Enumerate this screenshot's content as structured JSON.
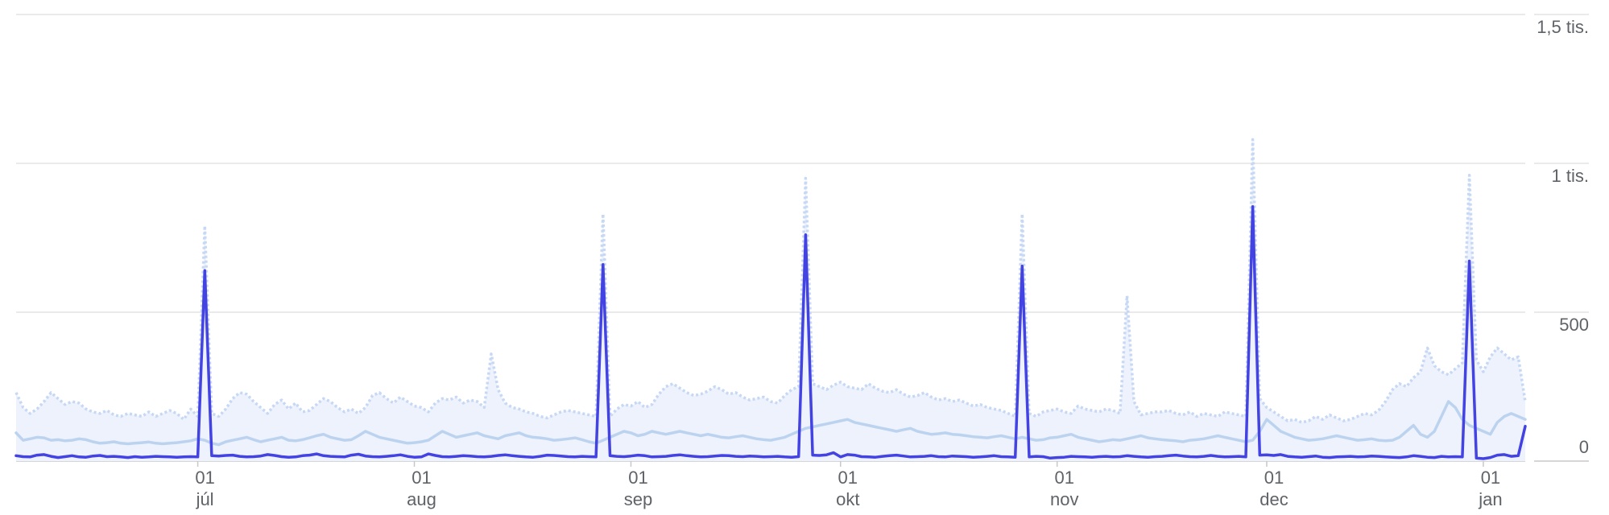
{
  "chart_data": {
    "type": "line",
    "categories": [
      null,
      null,
      null,
      null,
      null,
      null,
      null,
      null,
      null,
      null,
      null,
      null,
      null,
      null,
      null,
      null,
      null,
      null,
      null,
      null,
      null,
      null,
      null,
      null,
      null,
      null,
      [
        "01",
        "júl"
      ],
      null,
      null,
      null,
      null,
      null,
      null,
      null,
      null,
      null,
      null,
      null,
      null,
      null,
      null,
      null,
      null,
      null,
      null,
      null,
      null,
      null,
      null,
      null,
      null,
      null,
      null,
      null,
      null,
      null,
      null,
      [
        "01",
        "aug"
      ],
      null,
      null,
      null,
      null,
      null,
      null,
      null,
      null,
      null,
      null,
      null,
      null,
      null,
      null,
      null,
      null,
      null,
      null,
      null,
      null,
      null,
      null,
      null,
      null,
      null,
      null,
      null,
      null,
      null,
      null,
      [
        "01",
        "sep"
      ],
      null,
      null,
      null,
      null,
      null,
      null,
      null,
      null,
      null,
      null,
      null,
      null,
      null,
      null,
      null,
      null,
      null,
      null,
      null,
      null,
      null,
      null,
      null,
      null,
      null,
      null,
      null,
      null,
      null,
      [
        "01",
        "okt"
      ],
      null,
      null,
      null,
      null,
      null,
      null,
      null,
      null,
      null,
      null,
      null,
      null,
      null,
      null,
      null,
      null,
      null,
      null,
      null,
      null,
      null,
      null,
      null,
      null,
      null,
      null,
      null,
      null,
      null,
      null,
      [
        "01",
        "nov"
      ],
      null,
      null,
      null,
      null,
      null,
      null,
      null,
      null,
      null,
      null,
      null,
      null,
      null,
      null,
      null,
      null,
      null,
      null,
      null,
      null,
      null,
      null,
      null,
      null,
      null,
      null,
      null,
      null,
      null,
      [
        "01",
        "dec"
      ],
      null,
      null,
      null,
      null,
      null,
      null,
      null,
      null,
      null,
      null,
      null,
      null,
      null,
      null,
      null,
      null,
      null,
      null,
      null,
      null,
      null,
      null,
      null,
      null,
      null,
      null,
      null,
      null,
      null,
      null,
      [
        "01",
        "jan"
      ],
      null,
      null,
      null,
      null,
      null,
      null
    ],
    "series": [
      {
        "color": "#c6d8f4",
        "line_style": "dotted",
        "fill": "#eef2fc",
        "values": [
          230,
          180,
          160,
          175,
          200,
          230,
          210,
          190,
          200,
          195,
          175,
          165,
          160,
          170,
          155,
          150,
          160,
          155,
          150,
          165,
          150,
          160,
          170,
          160,
          140,
          175,
          150,
          790,
          160,
          150,
          175,
          210,
          230,
          225,
          200,
          180,
          160,
          190,
          205,
          175,
          195,
          165,
          170,
          190,
          210,
          200,
          180,
          165,
          175,
          160,
          180,
          220,
          230,
          210,
          195,
          215,
          200,
          185,
          180,
          165,
          195,
          210,
          205,
          215,
          195,
          205,
          200,
          180,
          360,
          240,
          195,
          180,
          175,
          165,
          160,
          150,
          145,
          155,
          165,
          170,
          165,
          160,
          155,
          150,
          830,
          150,
          175,
          190,
          185,
          200,
          180,
          190,
          225,
          250,
          260,
          245,
          230,
          220,
          225,
          235,
          250,
          240,
          225,
          230,
          215,
          205,
          210,
          215,
          200,
          195,
          220,
          240,
          250,
          950,
          260,
          250,
          240,
          255,
          265,
          250,
          245,
          240,
          260,
          245,
          235,
          230,
          240,
          225,
          215,
          220,
          230,
          215,
          205,
          210,
          200,
          205,
          195,
          185,
          190,
          180,
          175,
          170,
          160,
          150,
          830,
          160,
          150,
          165,
          170,
          175,
          165,
          160,
          185,
          175,
          170,
          165,
          175,
          170,
          160,
          555,
          200,
          155,
          160,
          165,
          165,
          170,
          160,
          155,
          165,
          150,
          160,
          155,
          150,
          165,
          160,
          155,
          150,
          1080,
          210,
          180,
          165,
          150,
          135,
          140,
          130,
          135,
          150,
          140,
          155,
          145,
          135,
          140,
          150,
          160,
          155,
          170,
          200,
          240,
          260,
          250,
          280,
          300,
          380,
          320,
          300,
          290,
          310,
          330,
          960,
          340,
          300,
          350,
          380,
          360,
          340,
          350,
          200
        ]
      },
      {
        "color": "#bcd3f0",
        "line_style": "solid",
        "values": [
          95,
          70,
          75,
          80,
          78,
          70,
          72,
          68,
          70,
          75,
          72,
          65,
          60,
          62,
          65,
          60,
          58,
          60,
          62,
          64,
          60,
          58,
          60,
          62,
          65,
          68,
          75,
          70,
          60,
          55,
          65,
          70,
          75,
          80,
          72,
          65,
          70,
          75,
          80,
          70,
          68,
          72,
          78,
          85,
          90,
          80,
          75,
          70,
          72,
          85,
          100,
          90,
          80,
          75,
          70,
          65,
          60,
          62,
          65,
          70,
          85,
          100,
          90,
          80,
          85,
          90,
          95,
          85,
          80,
          75,
          85,
          90,
          95,
          85,
          80,
          78,
          75,
          70,
          72,
          75,
          78,
          72,
          65,
          60,
          70,
          80,
          90,
          100,
          95,
          85,
          90,
          100,
          95,
          90,
          95,
          100,
          95,
          90,
          85,
          90,
          85,
          80,
          78,
          82,
          85,
          80,
          75,
          72,
          70,
          75,
          80,
          90,
          100,
          110,
          115,
          120,
          125,
          130,
          135,
          140,
          130,
          125,
          120,
          115,
          110,
          105,
          100,
          105,
          110,
          100,
          95,
          90,
          92,
          95,
          90,
          88,
          85,
          82,
          80,
          78,
          82,
          85,
          80,
          75,
          80,
          75,
          70,
          72,
          78,
          80,
          85,
          90,
          80,
          75,
          70,
          65,
          68,
          72,
          70,
          75,
          80,
          85,
          78,
          75,
          72,
          70,
          68,
          65,
          70,
          72,
          75,
          80,
          85,
          80,
          75,
          70,
          65,
          70,
          100,
          140,
          120,
          100,
          90,
          80,
          75,
          70,
          72,
          75,
          80,
          85,
          80,
          75,
          70,
          72,
          75,
          70,
          68,
          70,
          80,
          100,
          120,
          90,
          80,
          100,
          150,
          200,
          180,
          140,
          120,
          110,
          100,
          90,
          130,
          150,
          160,
          150,
          140
        ]
      },
      {
        "color": "#4343e3",
        "line_style": "solid",
        "values": [
          18,
          15,
          14,
          20,
          22,
          16,
          12,
          15,
          18,
          14,
          13,
          17,
          19,
          15,
          16,
          14,
          12,
          15,
          13,
          14,
          16,
          15,
          14,
          13,
          14,
          15,
          14,
          640,
          18,
          17,
          19,
          20,
          16,
          14,
          15,
          17,
          22,
          19,
          15,
          13,
          14,
          18,
          20,
          24,
          18,
          16,
          15,
          14,
          20,
          23,
          17,
          15,
          14,
          16,
          18,
          21,
          16,
          13,
          14,
          24,
          19,
          15,
          14,
          16,
          18,
          17,
          15,
          14,
          16,
          19,
          21,
          18,
          16,
          14,
          13,
          16,
          20,
          19,
          17,
          15,
          14,
          16,
          15,
          14,
          660,
          18,
          16,
          15,
          17,
          20,
          18,
          14,
          15,
          16,
          19,
          21,
          18,
          16,
          14,
          15,
          17,
          19,
          18,
          16,
          15,
          17,
          16,
          14,
          15,
          16,
          14,
          13,
          15,
          760,
          20,
          19,
          21,
          28,
          14,
          22,
          20,
          15,
          14,
          13,
          16,
          18,
          20,
          17,
          14,
          15,
          16,
          18,
          15,
          14,
          17,
          16,
          15,
          13,
          14,
          16,
          18,
          15,
          14,
          13,
          655,
          14,
          16,
          15,
          10,
          12,
          13,
          16,
          15,
          14,
          13,
          15,
          16,
          14,
          15,
          18,
          16,
          14,
          13,
          15,
          16,
          18,
          20,
          17,
          15,
          14,
          16,
          19,
          16,
          14,
          15,
          16,
          14,
          855,
          20,
          21,
          19,
          22,
          16,
          14,
          13,
          15,
          17,
          13,
          12,
          14,
          15,
          16,
          14,
          15,
          17,
          16,
          14,
          13,
          12,
          14,
          18,
          16,
          13,
          12,
          16,
          14,
          15,
          14,
          672,
          10,
          8,
          12,
          20,
          22,
          16,
          18,
          117
        ]
      }
    ],
    "ylim": [
      0,
      1500
    ],
    "yticks": [
      0,
      500,
      {
        "value": 1000,
        "label": "1 tis."
      },
      {
        "value": 1500,
        "label": "1,5 tis."
      }
    ],
    "grid": true
  }
}
